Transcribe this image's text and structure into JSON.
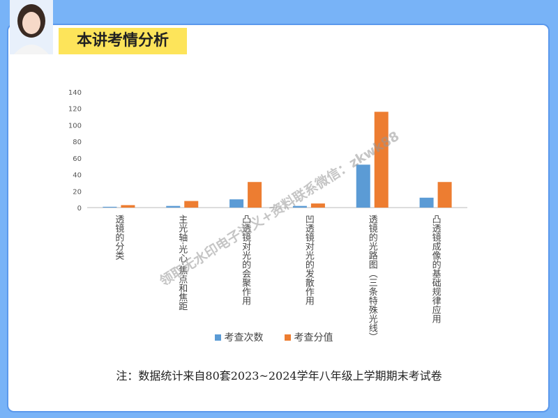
{
  "header": {
    "title": "本讲考情分析"
  },
  "chart_data": {
    "type": "bar",
    "categories": [
      "透镜的分类",
      "主光轴·光心·焦点和焦距",
      "凸透镜对光的会聚作用",
      "凹透镜对光的发散作用",
      "透镜的光路图（三条特殊光线）",
      "凸透镜成像的基础规律应用"
    ],
    "series": [
      {
        "name": "考查次数",
        "color": "#5b9bd5",
        "values": [
          1,
          2,
          10,
          2,
          52,
          12
        ]
      },
      {
        "name": "考查分值",
        "color": "#ed7d31",
        "values": [
          3,
          8,
          31,
          5,
          116,
          31
        ]
      }
    ],
    "ylim": [
      0,
      140
    ],
    "yticks": [
      0,
      20,
      40,
      60,
      80,
      100,
      120,
      140
    ],
    "grid": false,
    "legend": "bottom"
  },
  "note": "注：数据统计来自80套2023~2024学年八年级上学期期末考试卷",
  "watermark": "领取无水印电子讲义+资料联系微信：zkwk88"
}
